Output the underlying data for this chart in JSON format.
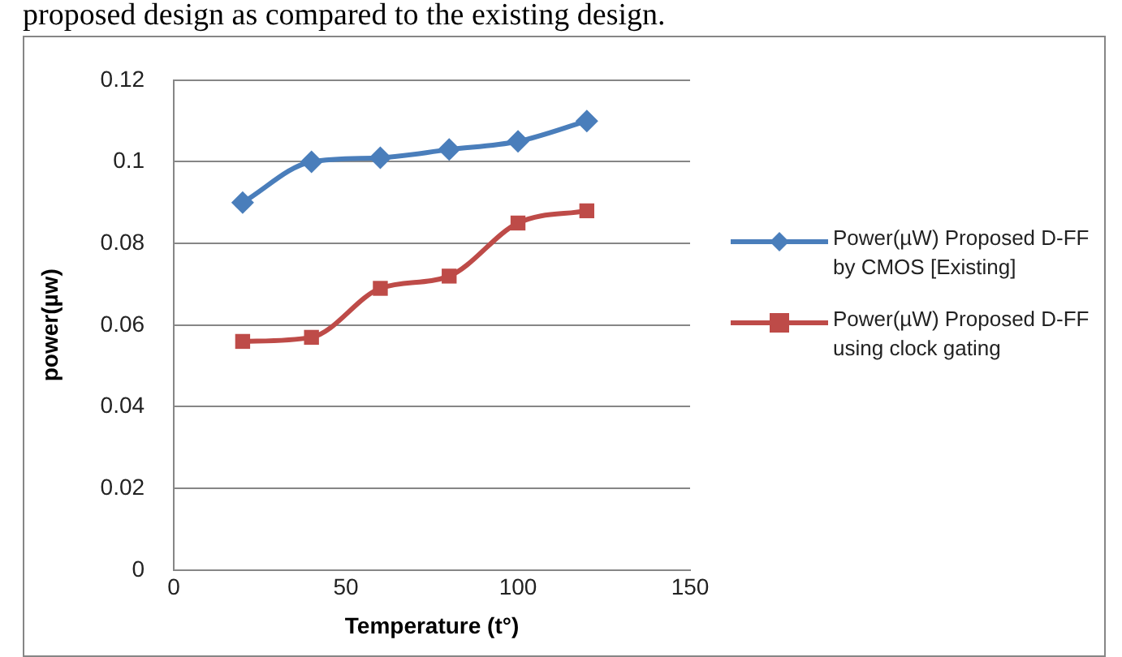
{
  "chart_data": {
    "type": "line",
    "xlabel": "Temperature (t°)",
    "ylabel": "power(µw)",
    "annotations": [
      "proposed design as compared to the existing design."
    ],
    "x": [
      20,
      40,
      60,
      80,
      100,
      120
    ],
    "series": [
      {
        "name": "Power(µW) Proposed D-FF by CMOS [Existing]",
        "color": "#4a7ebb",
        "marker": "diamond",
        "values": [
          0.09,
          0.1,
          0.101,
          0.103,
          0.105,
          0.11
        ]
      },
      {
        "name": "Power(µW) Proposed D-FF using clock gating",
        "color": "#be4b48",
        "marker": "square",
        "values": [
          0.056,
          0.057,
          0.069,
          0.072,
          0.085,
          0.088
        ]
      }
    ],
    "xlim": [
      0,
      150
    ],
    "xticks": [
      0,
      50,
      100,
      150
    ],
    "ylim": [
      0,
      0.12
    ],
    "yticks": [
      0,
      0.02,
      0.04,
      0.06,
      0.08,
      0.1,
      0.12
    ],
    "grid": "y",
    "legend": "right",
    "line_style": "solid"
  }
}
